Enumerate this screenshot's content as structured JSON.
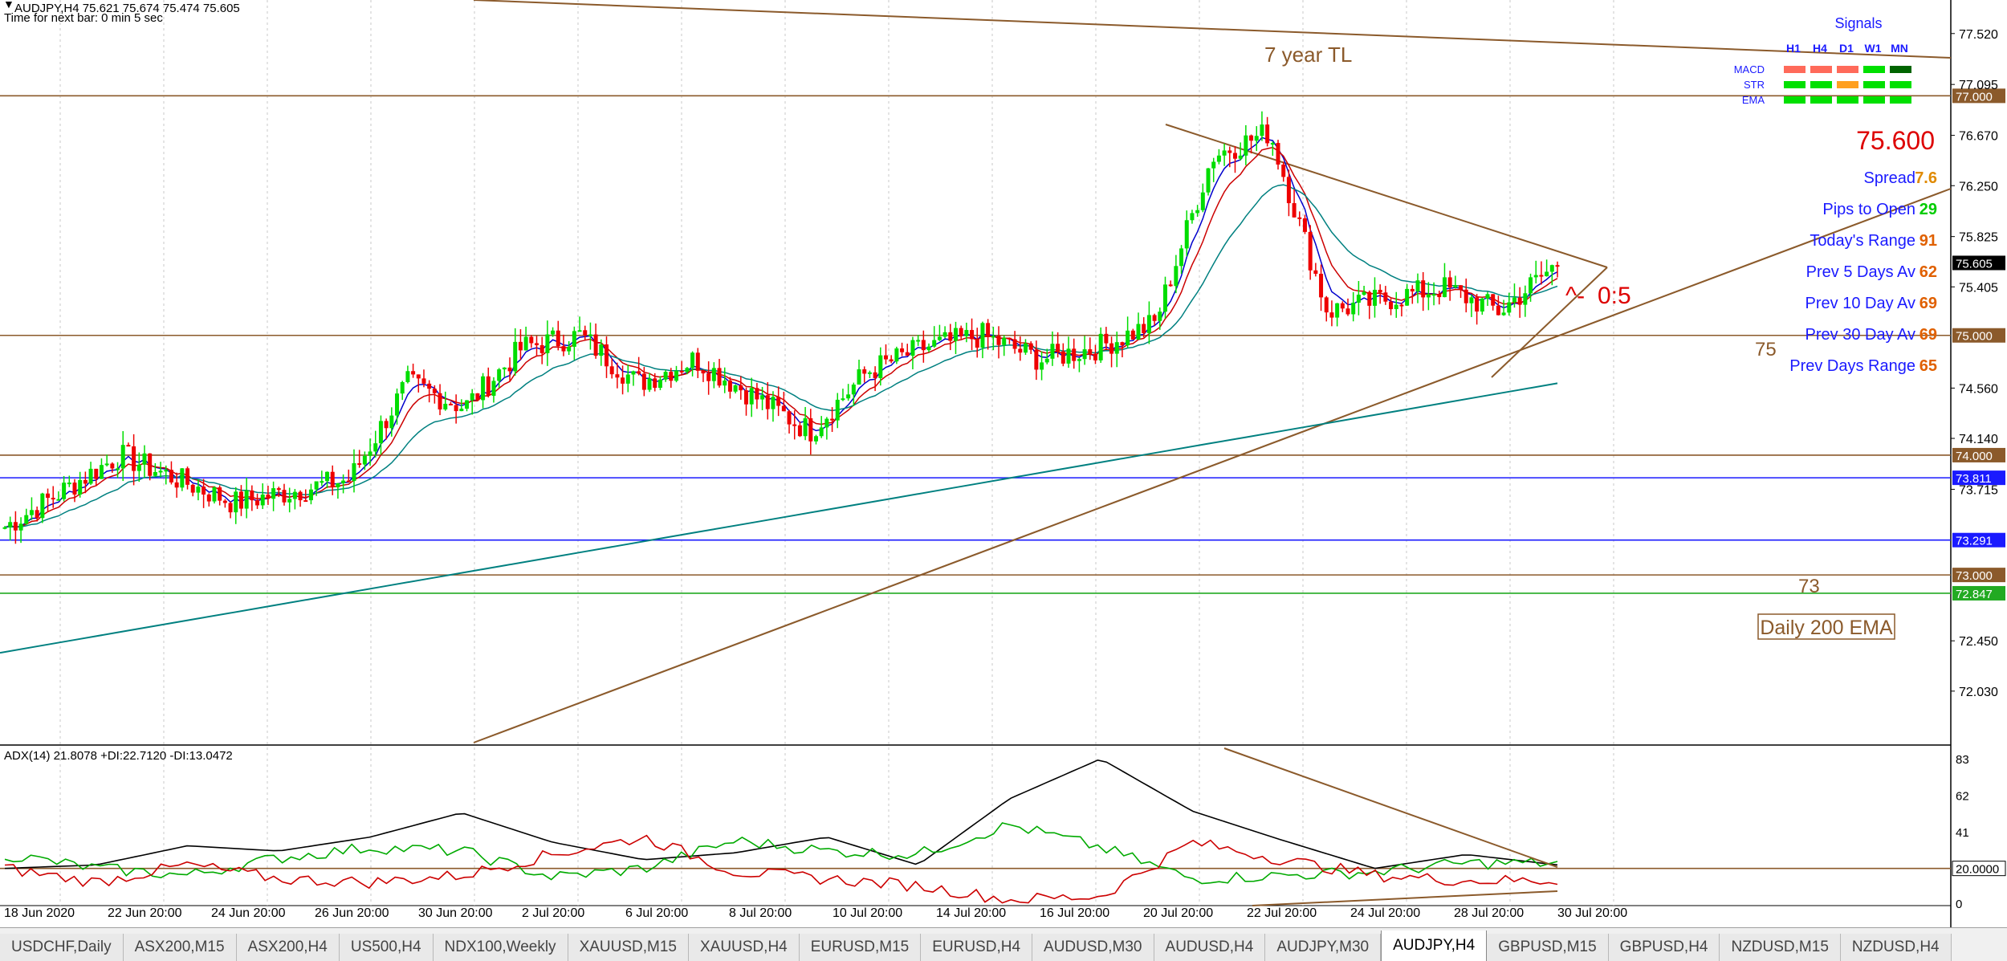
{
  "header": {
    "symbol_line": "AUDJPY,H4  75.621 75.674 75.474 75.605",
    "timer": "Time for next bar: 0 min 5 sec"
  },
  "annotations": {
    "tl_label": "7 year TL",
    "level_75": "75",
    "level_73": "73",
    "ema_box": "Daily 200 EMA",
    "ratio": "0:5",
    "price_big": "75.600"
  },
  "signals": {
    "title": "Signals",
    "columns": [
      "H1",
      "H4",
      "D1",
      "W1",
      "MN"
    ],
    "rows": [
      {
        "name": "MACD",
        "colors": [
          "#ff6a5a",
          "#ff6a5a",
          "#ff6a5a",
          "#00e000",
          "#006400"
        ]
      },
      {
        "name": "STR",
        "colors": [
          "#00e000",
          "#00e000",
          "#ffa020",
          "#00e000",
          "#00e000"
        ]
      },
      {
        "name": "EMA",
        "colors": [
          "#00e000",
          "#00e000",
          "#00e000",
          "#00e000",
          "#00e000"
        ]
      }
    ]
  },
  "stats": [
    {
      "label": "Spread",
      "value": "7.6",
      "value_color": "#e08a00"
    },
    {
      "label": "Pips to Open",
      "value": "29",
      "value_color": "#00cc00"
    },
    {
      "label": "Today's Range",
      "value": "91",
      "value_color": "#e06000"
    },
    {
      "label": "Prev 5 Days Av",
      "value": "62",
      "value_color": "#e06000"
    },
    {
      "label": "Prev 10 Day Av",
      "value": "69",
      "value_color": "#e06000"
    },
    {
      "label": "Prev 30 Day Av",
      "value": "69",
      "value_color": "#e06000"
    },
    {
      "label": "Prev Days Range",
      "value": "65",
      "value_color": "#e06000"
    }
  ],
  "indicator": {
    "label": "ADX(14) 21.8078 +DI:22.7120 -DI:13.0472",
    "scale_ticks": [
      "83",
      "62",
      "41",
      "20.0000",
      "0"
    ]
  },
  "tabs": [
    "USDCHF,Daily",
    "ASX200,M15",
    "ASX200,H4",
    "US500,H4",
    "NDX100,Weekly",
    "XAUUSD,M15",
    "XAUUSD,H4",
    "EURUSD,M15",
    "EURUSD,H4",
    "AUDUSD,M30",
    "AUDUSD,H4",
    "AUDJPY,M30",
    "AUDJPY,H4",
    "GBPUSD,M15",
    "GBPUSD,H4",
    "NZDUSD,M15",
    "NZDUSD,H4"
  ],
  "active_tab": "AUDJPY,H4",
  "colors": {
    "bull": "#00dd00",
    "bear": "#ee0000",
    "trendline": "#8b5a2b",
    "ema_fast": "#0000cc",
    "ema_mid": "#cc0000",
    "ema_slow": "#008080",
    "adx": "#000000",
    "plus_di": "#00aa00",
    "minus_di": "#cc0000"
  },
  "chart_data": {
    "type": "candlestick",
    "symbol": "AUDJPY",
    "timeframe": "H4",
    "ylim": [
      71.6,
      77.8
    ],
    "y_ticks": [
      "77.520",
      "77.095",
      "76.670",
      "76.250",
      "75.825",
      "75.405",
      "74.560",
      "74.140",
      "73.715",
      "72.450",
      "72.030"
    ],
    "x_ticks": [
      "18 Jun 2020",
      "22 Jun 20:00",
      "24 Jun 20:00",
      "26 Jun 20:00",
      "30 Jun 20:00",
      "2 Jul 20:00",
      "6 Jul 20:00",
      "8 Jul 20:00",
      "10 Jul 20:00",
      "14 Jul 20:00",
      "16 Jul 20:00",
      "20 Jul 20:00",
      "22 Jul 20:00",
      "24 Jul 20:00",
      "28 Jul 20:00",
      "30 Jul 20:00"
    ],
    "horizontal_levels": [
      {
        "value": 77.0,
        "label": "77.000",
        "color": "#8b5a2b"
      },
      {
        "value": 75.0,
        "label": "75.000",
        "color": "#8b5a2b"
      },
      {
        "value": 74.0,
        "label": "74.000",
        "color": "#8b5a2b"
      },
      {
        "value": 73.811,
        "label": "73.811",
        "color": "#1a1aff"
      },
      {
        "value": 73.291,
        "label": "73.291",
        "color": "#1a1aff"
      },
      {
        "value": 73.0,
        "label": "73.000",
        "color": "#8b5a2b"
      },
      {
        "value": 72.847,
        "label": "72.847",
        "color": "#22aa22"
      }
    ],
    "current_price": {
      "value": 75.605,
      "label": "75.605"
    },
    "key_points": [
      73.4,
      73.7,
      74.0,
      73.8,
      73.6,
      73.7,
      73.8,
      74.6,
      74.4,
      74.9,
      75.0,
      74.6,
      74.8,
      74.5,
      74.2,
      74.7,
      74.9,
      75.0,
      74.8,
      74.9,
      75.1,
      76.5,
      76.7,
      75.2,
      75.3,
      75.4,
      75.2,
      75.6
    ],
    "series": [
      {
        "name": "ADX",
        "values": [
          20,
          22,
          33,
          30,
          38,
          52,
          35,
          25,
          29,
          38,
          22,
          60,
          83,
          53,
          36,
          20,
          28,
          22
        ]
      },
      {
        "name": "+DI",
        "values": [
          28,
          20,
          16,
          26,
          32,
          30,
          15,
          20,
          36,
          30,
          28,
          45,
          32,
          14,
          16,
          18,
          23,
          23
        ]
      },
      {
        "name": "-DI",
        "values": [
          20,
          12,
          22,
          14,
          12,
          16,
          28,
          38,
          18,
          14,
          10,
          2,
          4,
          35,
          25,
          16,
          13,
          13
        ]
      }
    ],
    "adx_ylim": [
      0,
      90
    ]
  }
}
